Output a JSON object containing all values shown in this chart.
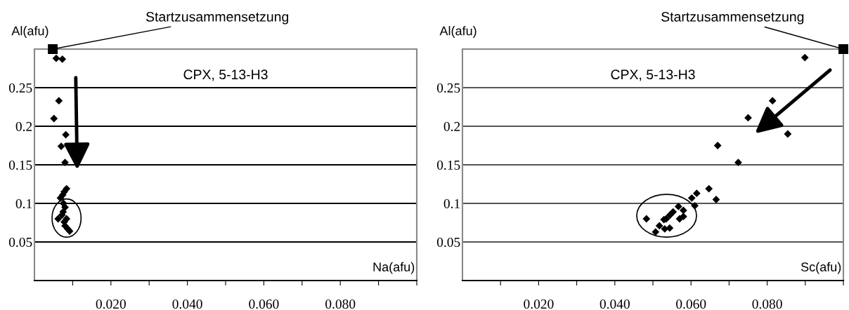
{
  "chart_data": [
    {
      "type": "scatter",
      "title": "CPX, 5-13-H3",
      "xlabel": "Na(afu)",
      "ylabel": "Al(afu)",
      "xlim": [
        0,
        0.1
      ],
      "ylim": [
        0,
        0.3
      ],
      "xticks": [
        {
          "value": 0.01,
          "label": null
        },
        {
          "value": 0.02,
          "label": "0.020"
        },
        {
          "value": 0.03,
          "label": null
        },
        {
          "value": 0.04,
          "label": "0.040"
        },
        {
          "value": 0.05,
          "label": null
        },
        {
          "value": 0.06,
          "label": "0.060"
        },
        {
          "value": 0.07,
          "label": null
        },
        {
          "value": 0.08,
          "label": "0.080"
        },
        {
          "value": 0.09,
          "label": null
        },
        {
          "value": 0.1,
          "label": null
        }
      ],
      "yticks": [
        0.05,
        0.1,
        0.15,
        0.2,
        0.25
      ],
      "grid": "y",
      "legend": false,
      "series": [
        {
          "color": "#000000",
          "marker": "diamond",
          "x": [
            0.0057,
            0.0073,
            0.0064,
            0.0051,
            0.0082,
            0.007,
            0.008,
            0.0084,
            0.0078,
            0.0074,
            0.0068,
            0.0076,
            0.008,
            0.0075,
            0.0072,
            0.0062,
            0.0084,
            0.0078,
            0.008,
            0.0087,
            0.0092
          ],
          "values": [
            0.288,
            0.287,
            0.233,
            0.21,
            0.189,
            0.174,
            0.153,
            0.119,
            0.115,
            0.111,
            0.107,
            0.1,
            0.095,
            0.089,
            0.085,
            0.08,
            0.08,
            0.076,
            0.071,
            0.067,
            0.064
          ]
        },
        {
          "color": "#000000",
          "marker": "square",
          "x": [
            0.0048
          ],
          "values": [
            0.3
          ]
        }
      ],
      "annotations": [
        {
          "text": "Startzusammensetzung",
          "x": 0.0048,
          "y": 0.3
        }
      ]
    },
    {
      "type": "scatter",
      "title": "CPX, 5-13-H3",
      "xlabel": "Sc(afu)",
      "ylabel": "Al(afu)",
      "xlim": [
        0,
        0.1
      ],
      "ylim": [
        0,
        0.3
      ],
      "xticks": [
        {
          "value": 0.01,
          "label": null
        },
        {
          "value": 0.02,
          "label": "0.020"
        },
        {
          "value": 0.03,
          "label": null
        },
        {
          "value": 0.04,
          "label": "0.040"
        },
        {
          "value": 0.05,
          "label": null
        },
        {
          "value": 0.06,
          "label": "0.060"
        },
        {
          "value": 0.07,
          "label": null
        },
        {
          "value": 0.08,
          "label": "0.080"
        },
        {
          "value": 0.09,
          "label": null
        },
        {
          "value": 0.1,
          "label": null
        }
      ],
      "yticks": [
        0.05,
        0.1,
        0.15,
        0.2,
        0.25
      ],
      "grid": "y",
      "legend": false,
      "series": [
        {
          "color": "#000000",
          "marker": "diamond",
          "x": [
            0.0899,
            0.0814,
            0.075,
            0.0854,
            0.067,
            0.0724,
            0.0647,
            0.0615,
            0.0602,
            0.0666,
            0.061,
            0.0567,
            0.058,
            0.0553,
            0.0545,
            0.0535,
            0.0529,
            0.058,
            0.057,
            0.0483,
            0.0517,
            0.0531,
            0.0544,
            0.0507
          ],
          "values": [
            0.289,
            0.233,
            0.211,
            0.19,
            0.175,
            0.153,
            0.119,
            0.113,
            0.107,
            0.105,
            0.097,
            0.096,
            0.091,
            0.089,
            0.085,
            0.08,
            0.079,
            0.083,
            0.08,
            0.08,
            0.071,
            0.067,
            0.068,
            0.063
          ]
        },
        {
          "color": "#000000",
          "marker": "square",
          "x": [
            0.1
          ],
          "values": [
            0.3
          ]
        }
      ],
      "annotations": [
        {
          "text": "Startzusammensetzung",
          "x": 0.1,
          "y": 0.3
        }
      ]
    }
  ]
}
